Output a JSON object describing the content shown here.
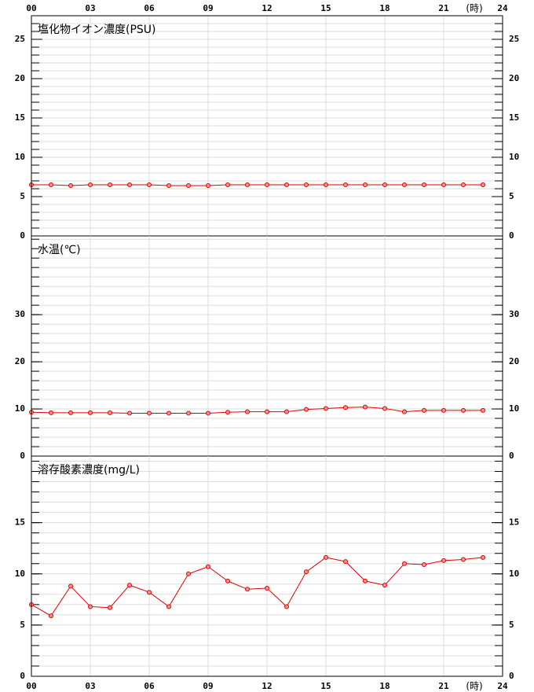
{
  "chart_data": [
    {
      "type": "line",
      "title": "塩化物イオン濃度(PSU)",
      "color": "#e00000",
      "x": [
        0,
        1,
        2,
        3,
        4,
        5,
        6,
        7,
        8,
        9,
        10,
        11,
        12,
        13,
        14,
        15,
        16,
        17,
        18,
        19,
        20,
        21,
        22,
        23
      ],
      "values": [
        6.5,
        6.5,
        6.4,
        6.5,
        6.5,
        6.5,
        6.5,
        6.4,
        6.4,
        6.4,
        6.5,
        6.5,
        6.5,
        6.5,
        6.5,
        6.5,
        6.5,
        6.5,
        6.5,
        6.5,
        6.5,
        6.5,
        6.5,
        6.5
      ],
      "xlim": [
        0,
        24
      ],
      "xticks": [
        {
          "value": 0,
          "label": "00"
        },
        {
          "value": 3,
          "label": "03"
        },
        {
          "value": 6,
          "label": "06"
        },
        {
          "value": 9,
          "label": "09"
        },
        12,
        15,
        18,
        21,
        24
      ],
      "x_label": "(時)",
      "x_axis_side": "top",
      "ylim": [
        0,
        28
      ],
      "yticks": [
        0,
        5,
        10,
        15,
        20,
        25
      ],
      "minor_step": 1,
      "grid": true
    },
    {
      "type": "line",
      "title": "水温(℃)",
      "color": "#e00000",
      "x": [
        0,
        1,
        2,
        3,
        4,
        5,
        6,
        7,
        8,
        9,
        10,
        11,
        12,
        13,
        14,
        15,
        16,
        17,
        18,
        19,
        20,
        21,
        22,
        23
      ],
      "values": [
        9.3,
        9.2,
        9.2,
        9.2,
        9.2,
        9.1,
        9.1,
        9.1,
        9.1,
        9.1,
        9.3,
        9.4,
        9.4,
        9.4,
        9.9,
        10.1,
        10.3,
        10.4,
        10.1,
        9.4,
        9.7,
        9.7,
        9.7,
        9.7
      ],
      "xlim": [
        0,
        24
      ],
      "ylim": [
        0,
        46.7
      ],
      "yticks": [
        0,
        10,
        20,
        30
      ],
      "minor_step": 2,
      "grid": true
    },
    {
      "type": "line",
      "title": "溶存酸素濃度(mg/L)",
      "color": "#e00000",
      "x": [
        0,
        1,
        2,
        3,
        4,
        5,
        6,
        7,
        8,
        9,
        10,
        11,
        12,
        13,
        14,
        15,
        16,
        17,
        18,
        19,
        20,
        21,
        22,
        23
      ],
      "values": [
        7.0,
        5.9,
        8.8,
        6.8,
        6.7,
        8.9,
        8.2,
        6.8,
        10.0,
        10.7,
        9.3,
        8.5,
        8.6,
        6.8,
        10.2,
        11.6,
        11.2,
        9.3,
        8.9,
        11.0,
        10.9,
        11.3,
        11.4,
        11.6
      ],
      "xlim": [
        0,
        24
      ],
      "xticks": [
        {
          "value": 0,
          "label": "00"
        },
        {
          "value": 3,
          "label": "03"
        },
        {
          "value": 6,
          "label": "06"
        },
        {
          "value": 9,
          "label": "09"
        },
        12,
        15,
        18,
        21,
        24
      ],
      "x_label": "(時)",
      "x_axis_side": "bottom",
      "ylim": [
        0,
        21.5
      ],
      "yticks": [
        0,
        5,
        10,
        15
      ],
      "minor_step": 1,
      "grid": true
    }
  ]
}
